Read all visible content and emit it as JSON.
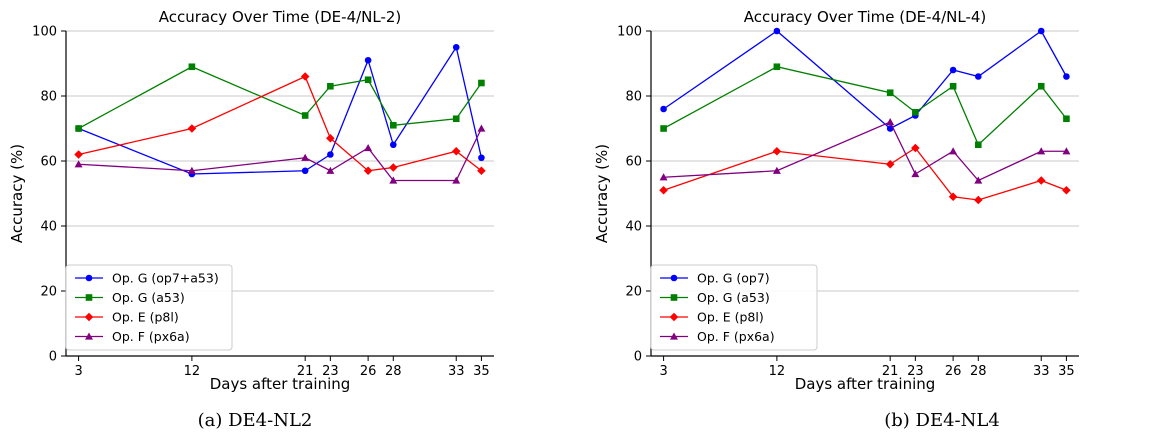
{
  "chart_data": [
    {
      "type": "line",
      "title": "Accuracy Over Time (DE-4/NL-2)",
      "xlabel": "Days after training",
      "ylabel": "Accuracy (%)",
      "x": [
        3,
        12,
        21,
        23,
        26,
        28,
        33,
        35
      ],
      "x_ticks": [
        3,
        12,
        21,
        23,
        26,
        28,
        33,
        35
      ],
      "y_ticks": [
        0,
        20,
        40,
        60,
        80,
        100
      ],
      "xlim": [
        2,
        36
      ],
      "ylim": [
        0,
        100
      ],
      "grid": "horizontal",
      "legend_position": "lower-left",
      "caption": "(a) DE4-NL2",
      "series": [
        {
          "name": "Op. G (op7+a53)",
          "color": "#0000ff",
          "marker": "circle",
          "values": [
            70,
            56,
            57,
            62,
            91,
            65,
            95,
            61
          ]
        },
        {
          "name": "Op. G (a53)",
          "color": "#008000",
          "marker": "square",
          "values": [
            70,
            89,
            74,
            83,
            85,
            71,
            73,
            84
          ]
        },
        {
          "name": "Op. E (p8l)",
          "color": "#ff0000",
          "marker": "diamond",
          "values": [
            62,
            70,
            86,
            67,
            57,
            58,
            63,
            57
          ]
        },
        {
          "name": "Op. F (px6a)",
          "color": "#800080",
          "marker": "triangle",
          "values": [
            59,
            57,
            61,
            57,
            64,
            54,
            54,
            70
          ]
        }
      ]
    },
    {
      "type": "line",
      "title": "Accuracy Over Time (DE-4/NL-4)",
      "xlabel": "Days after training",
      "ylabel": "Accuracy (%)",
      "x": [
        3,
        12,
        21,
        23,
        26,
        28,
        33,
        35
      ],
      "x_ticks": [
        3,
        12,
        21,
        23,
        26,
        28,
        33,
        35
      ],
      "y_ticks": [
        0,
        20,
        40,
        60,
        80,
        100
      ],
      "xlim": [
        2,
        36
      ],
      "ylim": [
        0,
        100
      ],
      "grid": "horizontal",
      "legend_position": "lower-left",
      "caption": "(b) DE4-NL4",
      "series": [
        {
          "name": "Op. G (op7)",
          "color": "#0000ff",
          "marker": "circle",
          "values": [
            76,
            100,
            70,
            74,
            88,
            86,
            100,
            86
          ]
        },
        {
          "name": "Op. G (a53)",
          "color": "#008000",
          "marker": "square",
          "values": [
            70,
            89,
            81,
            75,
            83,
            65,
            83,
            73
          ]
        },
        {
          "name": "Op. E (p8l)",
          "color": "#ff0000",
          "marker": "diamond",
          "values": [
            51,
            63,
            59,
            64,
            49,
            48,
            54,
            51
          ]
        },
        {
          "name": "Op. F (px6a)",
          "color": "#800080",
          "marker": "triangle",
          "values": [
            55,
            57,
            72,
            56,
            63,
            54,
            63,
            63
          ]
        }
      ]
    }
  ]
}
